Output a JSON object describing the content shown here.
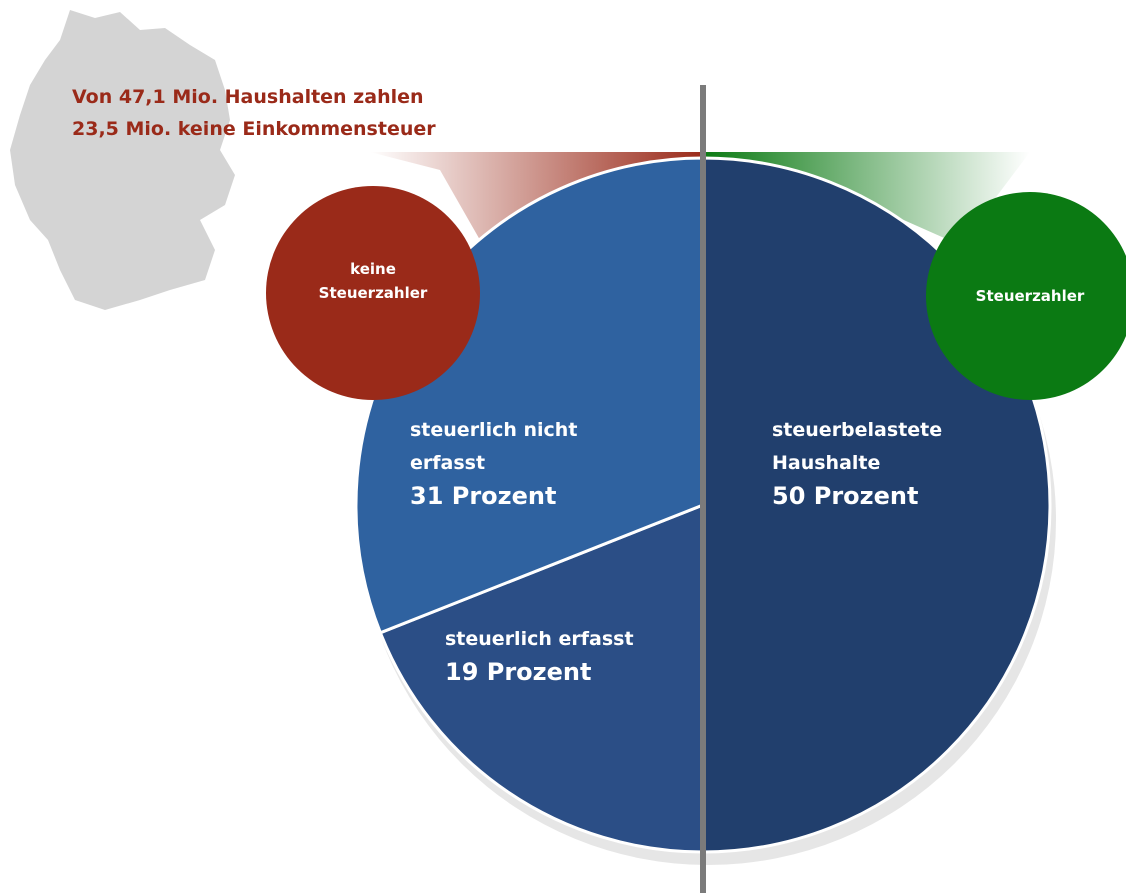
{
  "chart_data": {
    "type": "pie",
    "title": [
      "Von 47,1 Mio. Haushalten zahlen",
      "23,5 Mio. keine Einkommensteuer"
    ],
    "categories": [
      "steuerbelastete Haushalte",
      "steuerlich erfasst",
      "steuerlich nicht erfasst"
    ],
    "values": [
      50,
      19,
      31
    ],
    "value_labels": [
      "50 Prozent",
      "19 Prozent",
      "31 Prozent"
    ],
    "colors": [
      "#213f6d",
      "#2b4e86",
      "#2f62a0"
    ],
    "annotations": [
      {
        "text": "keine Steuerzahler",
        "color": "#9a2a19"
      },
      {
        "text": "Steuerzahler",
        "color": "#0b7a13"
      }
    ]
  }
}
